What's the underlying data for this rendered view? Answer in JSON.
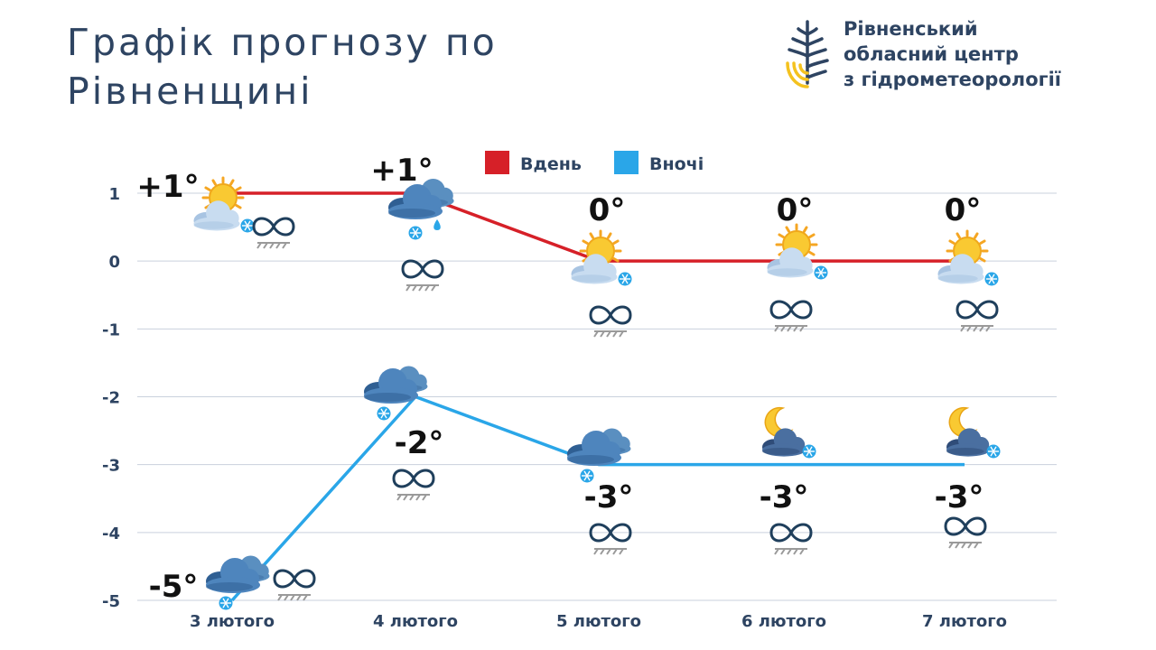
{
  "title_lines": [
    "Графік прогнозу по",
    "Рівненщині"
  ],
  "organization": {
    "name_lines": [
      "Рівненський",
      "обласний центр",
      "з гідрометеорології"
    ],
    "logo_icon": "water-drop-logo-icon"
  },
  "colors": {
    "day": "#d62028",
    "night": "#2aa6e8",
    "text": "#2e4462",
    "grid": "#c9d1dd",
    "logo_blue": "#2e4462",
    "logo_yellow": "#f4c21f"
  },
  "chart_data": {
    "type": "line",
    "categories": [
      "3 лютого",
      "4 лютого",
      "5 лютого",
      "6 лютого",
      "7 лютого"
    ],
    "ylim": [
      -5,
      1
    ],
    "yticks": [
      "1",
      "0",
      "-1",
      "-2",
      "-3",
      "-4",
      "-5"
    ],
    "grid": true,
    "legend_position": "top-center",
    "series": [
      {
        "name": "Вдень",
        "values": [
          1,
          1,
          0,
          0,
          0
        ],
        "labels": [
          "+1°",
          "+1°",
          "0°",
          "0°",
          "0°"
        ],
        "icons": [
          "sun-cloud-snow-icon",
          "cloud-rain-snow-icon",
          "sun-cloud-snow-icon",
          "sun-cloud-snow-icon",
          "sun-cloud-snow-icon"
        ]
      },
      {
        "name": "Вночі",
        "values": [
          -5,
          -2,
          -3,
          -3,
          -3
        ],
        "labels": [
          "-5°",
          "-2°",
          "-3°",
          "-3°",
          "-3°"
        ],
        "icons": [
          "cloud-snow-icon",
          "cloud-snow-icon",
          "cloud-snow-icon",
          "moon-cloud-snow-icon",
          "moon-cloud-snow-icon"
        ]
      }
    ],
    "extra_icons": "ice-road-icon"
  }
}
